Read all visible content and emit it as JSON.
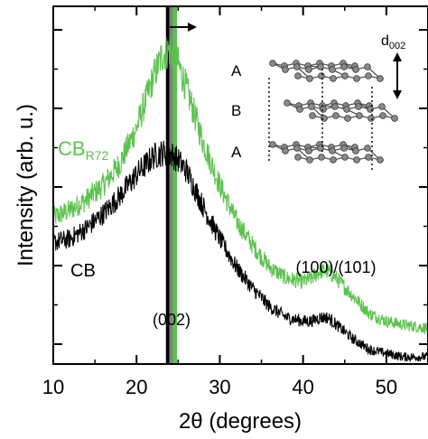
{
  "chart_data": {
    "type": "line",
    "xlabel": "2θ (degrees)",
    "ylabel": "Intensity (arb. u.)",
    "xlim": [
      10,
      55
    ],
    "ylim": [
      0,
      100
    ],
    "x_ticks": [
      "10",
      "20",
      "30",
      "40",
      "50"
    ],
    "y_ticks_labeled": false,
    "grid": false,
    "series": [
      {
        "name": "CB_R72",
        "label_main": "CB",
        "label_sub": "R72",
        "color": "#5cc24f",
        "x": [
          10,
          12,
          14,
          16,
          18,
          20,
          22,
          23,
          24,
          25,
          26,
          28,
          30,
          32,
          34,
          36,
          38,
          40,
          41,
          42,
          43,
          44,
          46,
          48,
          50,
          52,
          55
        ],
        "y": [
          41,
          43,
          46,
          50,
          56,
          66,
          80,
          86,
          88,
          84,
          77,
          62,
          50,
          40,
          33,
          27,
          24,
          23,
          24,
          26,
          26,
          24,
          19,
          14,
          12,
          11,
          10
        ]
      },
      {
        "name": "CB",
        "label_main": "CB",
        "color": "#000000",
        "x": [
          10,
          12,
          14,
          16,
          18,
          20,
          22,
          23,
          24,
          25,
          26,
          28,
          30,
          32,
          34,
          36,
          38,
          40,
          41,
          42,
          43,
          44,
          46,
          48,
          50,
          52,
          55
        ],
        "y": [
          34,
          35,
          38,
          42,
          47,
          53,
          58,
          59,
          59,
          57,
          54,
          44,
          35,
          27,
          21,
          16,
          13,
          12,
          12,
          13,
          13,
          11,
          7,
          4,
          3,
          2,
          2
        ]
      }
    ],
    "vertical_lines": [
      {
        "x": 23.8,
        "color": "#000000"
      },
      {
        "x": 24.2,
        "color": "#808080"
      },
      {
        "x": 24.6,
        "color": "#5cc24f"
      }
    ],
    "shift_arrow": "right",
    "annotations": [
      {
        "text": "(002)",
        "x": 24.4,
        "y": 13
      },
      {
        "text": "(100)/(101)",
        "x": 43,
        "y": 30
      }
    ],
    "inset": {
      "description_labels": [
        "A",
        "B",
        "A"
      ],
      "spacing_label_main": "d",
      "spacing_label_sub": "002"
    }
  }
}
